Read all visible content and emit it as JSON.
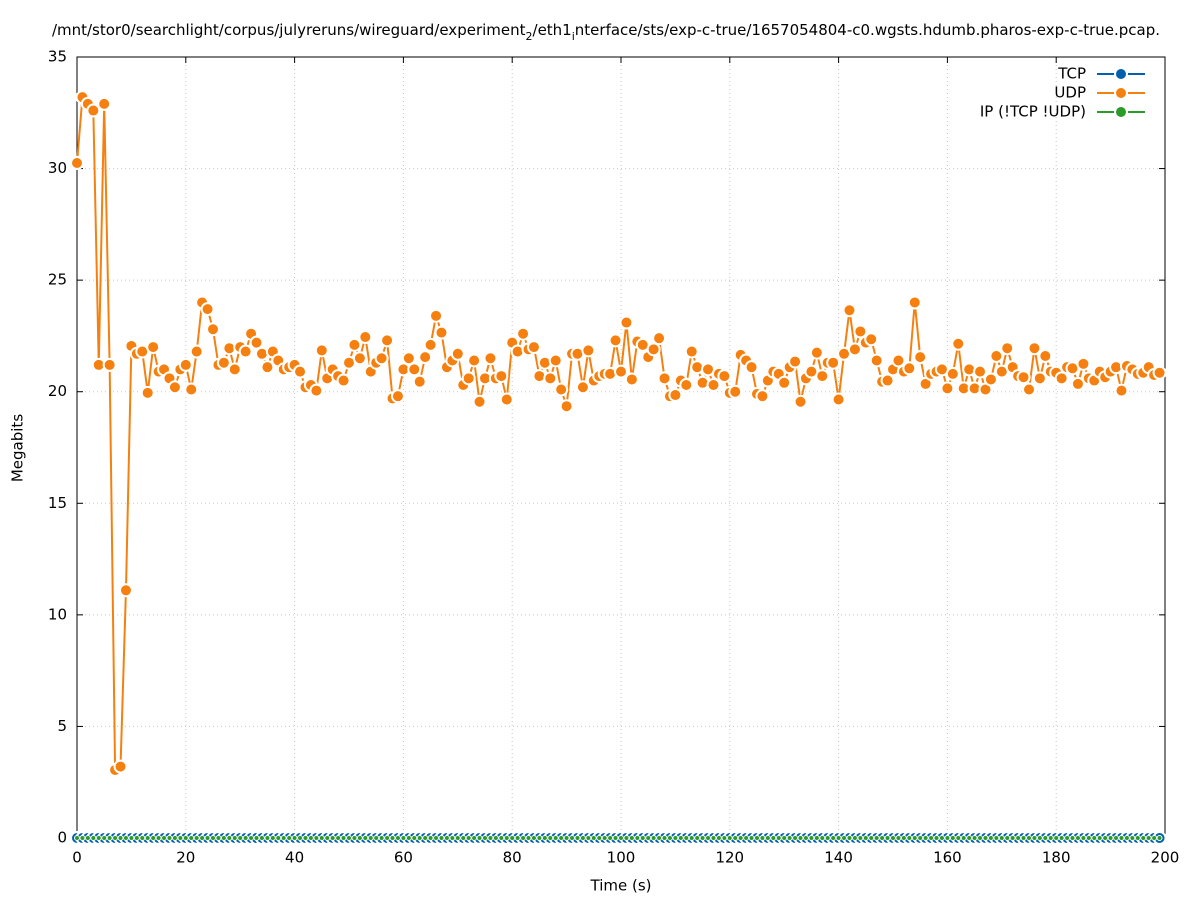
{
  "chart_data": {
    "type": "line",
    "title": [
      {
        "text": "/mnt/stor0/searchlight/corpus/julyreruns/wireguard/experiment"
      },
      {
        "text": "2",
        "sub": true
      },
      {
        "text": "/eth1"
      },
      {
        "text": "i",
        "sub": true
      },
      {
        "text": "nterface/sts/exp-c-true/1657054804-c0.wgsts.hdumb.pharos-exp-c-true.pcap."
      }
    ],
    "x_label": "Time (s)",
    "y_label": "Megabits",
    "xlim": [
      0,
      200
    ],
    "xticks": [
      0,
      20,
      40,
      60,
      80,
      100,
      120,
      140,
      160,
      180,
      200
    ],
    "ylim": [
      0,
      35
    ],
    "yticks": [
      0,
      5,
      10,
      15,
      20,
      25,
      30,
      35
    ],
    "grid": true,
    "legend": "top-right",
    "x": [
      0,
      1,
      2,
      3,
      4,
      5,
      6,
      7,
      8,
      9,
      10,
      11,
      12,
      13,
      14,
      15,
      16,
      17,
      18,
      19,
      20,
      21,
      22,
      23,
      24,
      25,
      26,
      27,
      28,
      29,
      30,
      31,
      32,
      33,
      34,
      35,
      36,
      37,
      38,
      39,
      40,
      41,
      42,
      43,
      44,
      45,
      46,
      47,
      48,
      49,
      50,
      51,
      52,
      53,
      54,
      55,
      56,
      57,
      58,
      59,
      60,
      61,
      62,
      63,
      64,
      65,
      66,
      67,
      68,
      69,
      70,
      71,
      72,
      73,
      74,
      75,
      76,
      77,
      78,
      79,
      80,
      81,
      82,
      83,
      84,
      85,
      86,
      87,
      88,
      89,
      90,
      91,
      92,
      93,
      94,
      95,
      96,
      97,
      98,
      99,
      100,
      101,
      102,
      103,
      104,
      105,
      106,
      107,
      108,
      109,
      110,
      111,
      112,
      113,
      114,
      115,
      116,
      117,
      118,
      119,
      120,
      121,
      122,
      123,
      124,
      125,
      126,
      127,
      128,
      129,
      130,
      131,
      132,
      133,
      134,
      135,
      136,
      137,
      138,
      139,
      140,
      141,
      142,
      143,
      144,
      145,
      146,
      147,
      148,
      149,
      150,
      151,
      152,
      153,
      154,
      155,
      156,
      157,
      158,
      159,
      160,
      161,
      162,
      163,
      164,
      165,
      166,
      167,
      168,
      169,
      170,
      171,
      172,
      173,
      174,
      175,
      176,
      177,
      178,
      179,
      180,
      181,
      182,
      183,
      184,
      185,
      186,
      187,
      188,
      189,
      190,
      191,
      192,
      193,
      194,
      195,
      196,
      197,
      198,
      199
    ],
    "series": [
      {
        "name": "TCP",
        "color": "#0060ad",
        "values": [
          0,
          0,
          0,
          0,
          0,
          0,
          0,
          0,
          0,
          0,
          0,
          0,
          0,
          0,
          0,
          0,
          0,
          0,
          0,
          0,
          0,
          0,
          0,
          0,
          0,
          0,
          0,
          0,
          0,
          0,
          0,
          0,
          0,
          0,
          0,
          0,
          0,
          0,
          0,
          0,
          0,
          0,
          0,
          0,
          0,
          0,
          0,
          0,
          0,
          0,
          0,
          0,
          0,
          0,
          0,
          0,
          0,
          0,
          0,
          0,
          0,
          0,
          0,
          0,
          0,
          0,
          0,
          0,
          0,
          0,
          0,
          0,
          0,
          0,
          0,
          0,
          0,
          0,
          0,
          0,
          0,
          0,
          0,
          0,
          0,
          0,
          0,
          0,
          0,
          0,
          0,
          0,
          0,
          0,
          0,
          0,
          0,
          0,
          0,
          0,
          0,
          0,
          0,
          0,
          0,
          0,
          0,
          0,
          0,
          0,
          0,
          0,
          0,
          0,
          0,
          0,
          0,
          0,
          0,
          0,
          0,
          0,
          0,
          0,
          0,
          0,
          0,
          0,
          0,
          0,
          0,
          0,
          0,
          0,
          0,
          0,
          0,
          0,
          0,
          0,
          0,
          0,
          0,
          0,
          0,
          0,
          0,
          0,
          0,
          0,
          0,
          0,
          0,
          0,
          0,
          0,
          0,
          0,
          0,
          0,
          0,
          0,
          0,
          0,
          0,
          0,
          0,
          0,
          0,
          0,
          0,
          0,
          0,
          0,
          0,
          0,
          0,
          0,
          0,
          0,
          0,
          0,
          0,
          0,
          0,
          0,
          0,
          0,
          0,
          0,
          0,
          0,
          0,
          0,
          0,
          0,
          0,
          0,
          0,
          0
        ]
      },
      {
        "name": "UDP",
        "color": "#f5800f",
        "values": [
          30.25,
          33.2,
          32.9,
          32.6,
          21.2,
          32.9,
          21.2,
          3.05,
          3.2,
          11.1,
          22.05,
          21.7,
          21.8,
          19.95,
          22.0,
          20.9,
          21.0,
          20.6,
          20.2,
          21.0,
          21.2,
          20.1,
          21.8,
          24.0,
          23.7,
          22.8,
          21.2,
          21.3,
          21.95,
          21.0,
          22.0,
          21.8,
          22.6,
          22.2,
          21.7,
          21.1,
          21.8,
          21.4,
          21.0,
          21.1,
          21.2,
          20.9,
          20.2,
          20.3,
          20.05,
          21.85,
          20.6,
          21.0,
          20.7,
          20.5,
          21.3,
          22.1,
          21.5,
          22.45,
          20.9,
          21.3,
          21.5,
          22.3,
          19.7,
          19.8,
          21.0,
          21.5,
          21.0,
          20.45,
          21.55,
          22.1,
          23.4,
          22.65,
          21.1,
          21.4,
          21.7,
          20.3,
          20.6,
          21.4,
          19.55,
          20.6,
          21.5,
          20.6,
          20.7,
          19.65,
          22.2,
          21.8,
          22.6,
          21.9,
          22.0,
          20.7,
          21.3,
          20.6,
          21.4,
          20.1,
          19.35,
          21.7,
          21.7,
          20.2,
          21.85,
          20.5,
          20.7,
          20.8,
          20.8,
          22.3,
          20.9,
          23.1,
          20.55,
          22.25,
          22.1,
          21.55,
          21.9,
          22.4,
          20.6,
          19.8,
          19.85,
          20.5,
          20.3,
          21.8,
          21.1,
          20.4,
          21.0,
          20.3,
          20.8,
          20.7,
          19.95,
          20.0,
          21.65,
          21.4,
          21.1,
          19.9,
          19.8,
          20.5,
          20.9,
          20.8,
          20.4,
          21.1,
          21.35,
          19.55,
          20.6,
          20.9,
          21.75,
          20.7,
          21.3,
          21.3,
          19.65,
          21.7,
          23.65,
          21.9,
          22.7,
          22.2,
          22.35,
          21.4,
          20.45,
          20.5,
          21.0,
          21.4,
          20.9,
          21.05,
          24.0,
          21.55,
          20.35,
          20.8,
          20.9,
          21.0,
          20.15,
          20.8,
          22.15,
          20.15,
          21.0,
          20.15,
          20.9,
          20.1,
          20.55,
          21.6,
          20.9,
          21.95,
          21.1,
          20.7,
          20.65,
          20.1,
          21.95,
          20.6,
          21.6,
          20.9,
          20.85,
          20.6,
          21.1,
          21.05,
          20.35,
          21.25,
          20.6,
          20.5,
          20.9,
          20.65,
          20.9,
          21.1,
          20.05,
          21.15,
          21.0,
          20.8,
          20.85,
          21.1,
          20.75,
          20.85
        ]
      },
      {
        "name": "IP (!TCP  !UDP)",
        "color": "#2a9a2a",
        "values": [
          0,
          0,
          0,
          0,
          0,
          0,
          0,
          0,
          0,
          0,
          0,
          0,
          0,
          0,
          0,
          0,
          0,
          0,
          0,
          0,
          0,
          0,
          0,
          0,
          0,
          0,
          0,
          0,
          0,
          0,
          0,
          0,
          0,
          0,
          0,
          0,
          0,
          0,
          0,
          0,
          0,
          0,
          0,
          0,
          0,
          0,
          0,
          0,
          0,
          0,
          0,
          0,
          0,
          0,
          0,
          0,
          0,
          0,
          0,
          0,
          0,
          0,
          0,
          0,
          0,
          0,
          0,
          0,
          0,
          0,
          0,
          0,
          0,
          0,
          0,
          0,
          0,
          0,
          0,
          0,
          0,
          0,
          0,
          0,
          0,
          0,
          0,
          0,
          0,
          0,
          0,
          0,
          0,
          0,
          0,
          0,
          0,
          0,
          0,
          0,
          0,
          0,
          0,
          0,
          0,
          0,
          0,
          0,
          0,
          0,
          0,
          0,
          0,
          0,
          0,
          0,
          0,
          0,
          0,
          0,
          0,
          0,
          0,
          0,
          0,
          0,
          0,
          0,
          0,
          0,
          0,
          0,
          0,
          0,
          0,
          0,
          0,
          0,
          0,
          0,
          0,
          0,
          0,
          0,
          0,
          0,
          0,
          0,
          0,
          0,
          0,
          0,
          0,
          0,
          0,
          0,
          0,
          0,
          0,
          0,
          0,
          0,
          0,
          0,
          0,
          0,
          0,
          0,
          0,
          0,
          0,
          0,
          0,
          0,
          0,
          0,
          0,
          0,
          0,
          0,
          0,
          0,
          0,
          0,
          0,
          0,
          0,
          0,
          0,
          0,
          0,
          0,
          0,
          0,
          0,
          0,
          0,
          0,
          0,
          0
        ]
      }
    ]
  }
}
